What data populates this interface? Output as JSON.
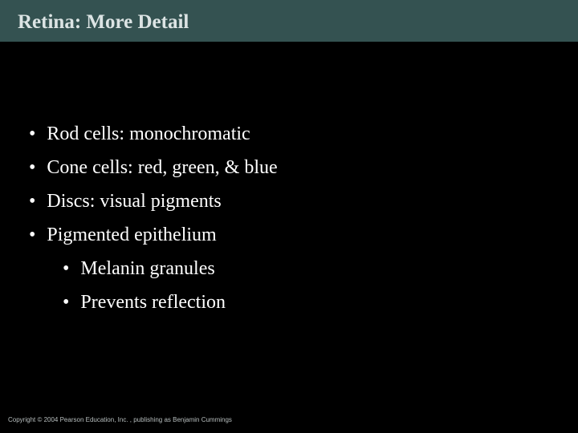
{
  "slide": {
    "title": "Retina: More Detail",
    "background_color": "#345251",
    "block_color": "#000000",
    "text_color": "#ffffff",
    "title_color": "#dce4e4",
    "title_fontsize": 25,
    "body_fontsize": 24,
    "font_family": "Georgia, Times New Roman, serif",
    "bullets": [
      {
        "text": "Rod cells:  monochromatic"
      },
      {
        "text": "Cone cells: red, green, & blue"
      },
      {
        "text": "Discs: visual pigments"
      },
      {
        "text": "Pigmented epithelium"
      }
    ],
    "sub_bullets": [
      {
        "text": "Melanin granules"
      },
      {
        "text": "Prevents reflection"
      }
    ],
    "footer": "Copyright © 2004 Pearson Education, Inc. , publishing as Benjamin Cummings"
  }
}
